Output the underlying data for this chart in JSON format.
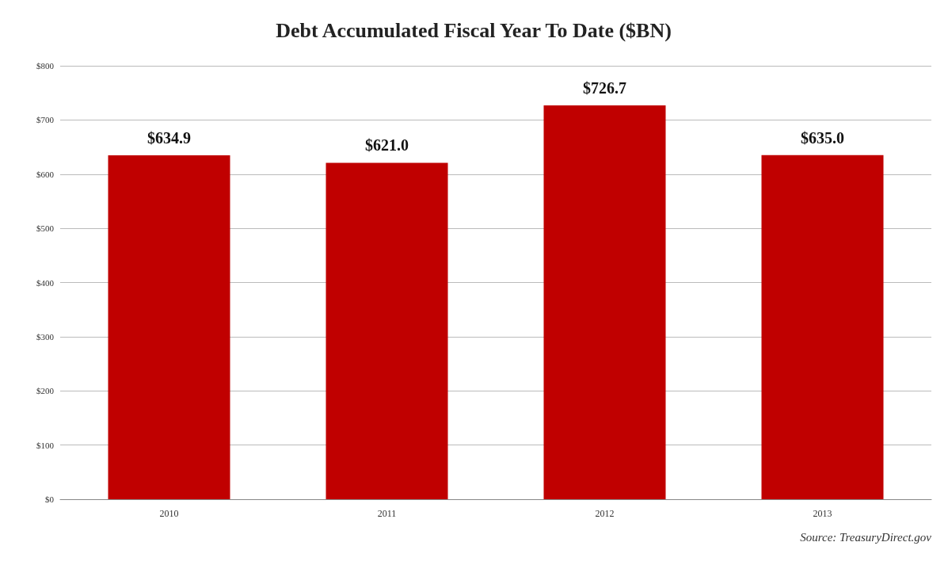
{
  "chart_data": {
    "type": "bar",
    "title": "Debt Accumulated Fiscal Year To Date ($BN)",
    "categories": [
      "2010",
      "2011",
      "2012",
      "2013"
    ],
    "values": [
      634.9,
      621.0,
      726.7,
      635.0
    ],
    "value_labels": [
      "$634.9",
      "$621.0",
      "$726.7",
      "$635.0"
    ],
    "color": "#c00000",
    "ylim": [
      0,
      800
    ],
    "yticks": [
      {
        "value": 0,
        "label": "$0"
      },
      {
        "value": 100,
        "label": "$100"
      },
      {
        "value": 200,
        "label": "$200"
      },
      {
        "value": 300,
        "label": "$300"
      },
      {
        "value": 400,
        "label": "$400"
      },
      {
        "value": 500,
        "label": "$500"
      },
      {
        "value": 600,
        "label": "$600"
      },
      {
        "value": 700,
        "label": "$700"
      },
      {
        "value": 800,
        "label": "$800"
      }
    ],
    "grid": "y",
    "annotations": [
      "Source: TreasuryDirect.gov"
    ]
  }
}
